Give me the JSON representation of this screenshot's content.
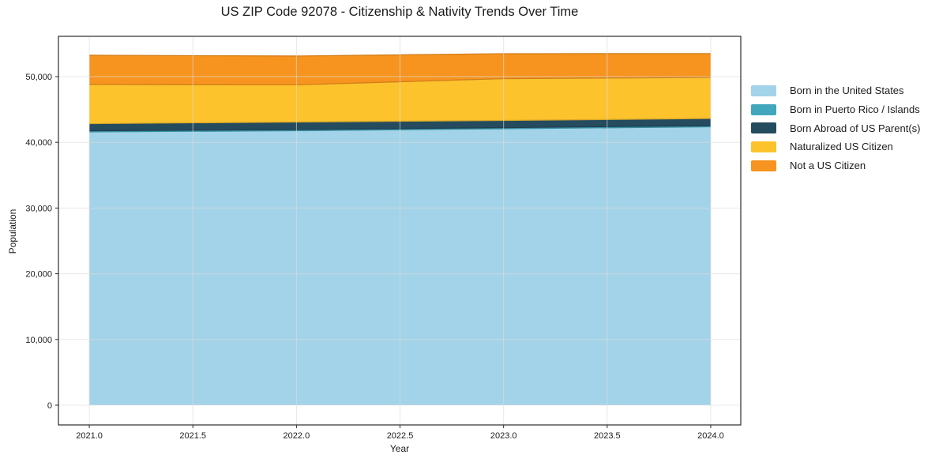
{
  "chart_data": {
    "type": "area",
    "stacked": true,
    "title": "US ZIP Code 92078 - Citizenship & Nativity Trends Over Time",
    "xlabel": "Year",
    "ylabel": "Population",
    "x": [
      2021,
      2022,
      2023,
      2024
    ],
    "series": [
      {
        "name": "Born in the United States",
        "color": "#A3D3E8",
        "values": [
          41590,
          41770,
          42070,
          42370
        ]
      },
      {
        "name": "Born in Puerto Rico / Islands",
        "color": "#41A7BD",
        "values": [
          170,
          170,
          170,
          170
        ]
      },
      {
        "name": "Born Abroad of US Parent(s)",
        "color": "#254B5E",
        "values": [
          1090,
          1150,
          1090,
          1090
        ]
      },
      {
        "name": "Naturalized US Citizen",
        "color": "#FCC32D",
        "values": [
          5950,
          5660,
          6360,
          6250
        ]
      },
      {
        "name": "Not a US Citizen",
        "color": "#F7941F",
        "values": [
          4450,
          4380,
          3800,
          3620
        ]
      }
    ],
    "totals": [
      53250,
      53130,
      53490,
      53500
    ],
    "xtick_values": [
      2021.0,
      2021.5,
      2022.0,
      2022.5,
      2023.0,
      2023.5,
      2024.0
    ],
    "xtick_labels": [
      "2021.0",
      "2021.5",
      "2022.0",
      "2022.5",
      "2023.0",
      "2023.5",
      "2024.0"
    ],
    "ytick_values": [
      0,
      10000,
      20000,
      30000,
      40000,
      50000
    ],
    "ytick_labels": [
      "0",
      "10,000",
      "20,000",
      "30,000",
      "40,000",
      "50,000"
    ],
    "xlim": [
      2020.851,
      2024.145
    ],
    "ylim": [
      -3005,
      56130
    ],
    "grid": true,
    "legend_position": "right",
    "colors": {
      "grid": "#dcdcdc",
      "spine": "#2b2b2b",
      "text": "#1c1c1c",
      "background": "#ffffff"
    }
  }
}
